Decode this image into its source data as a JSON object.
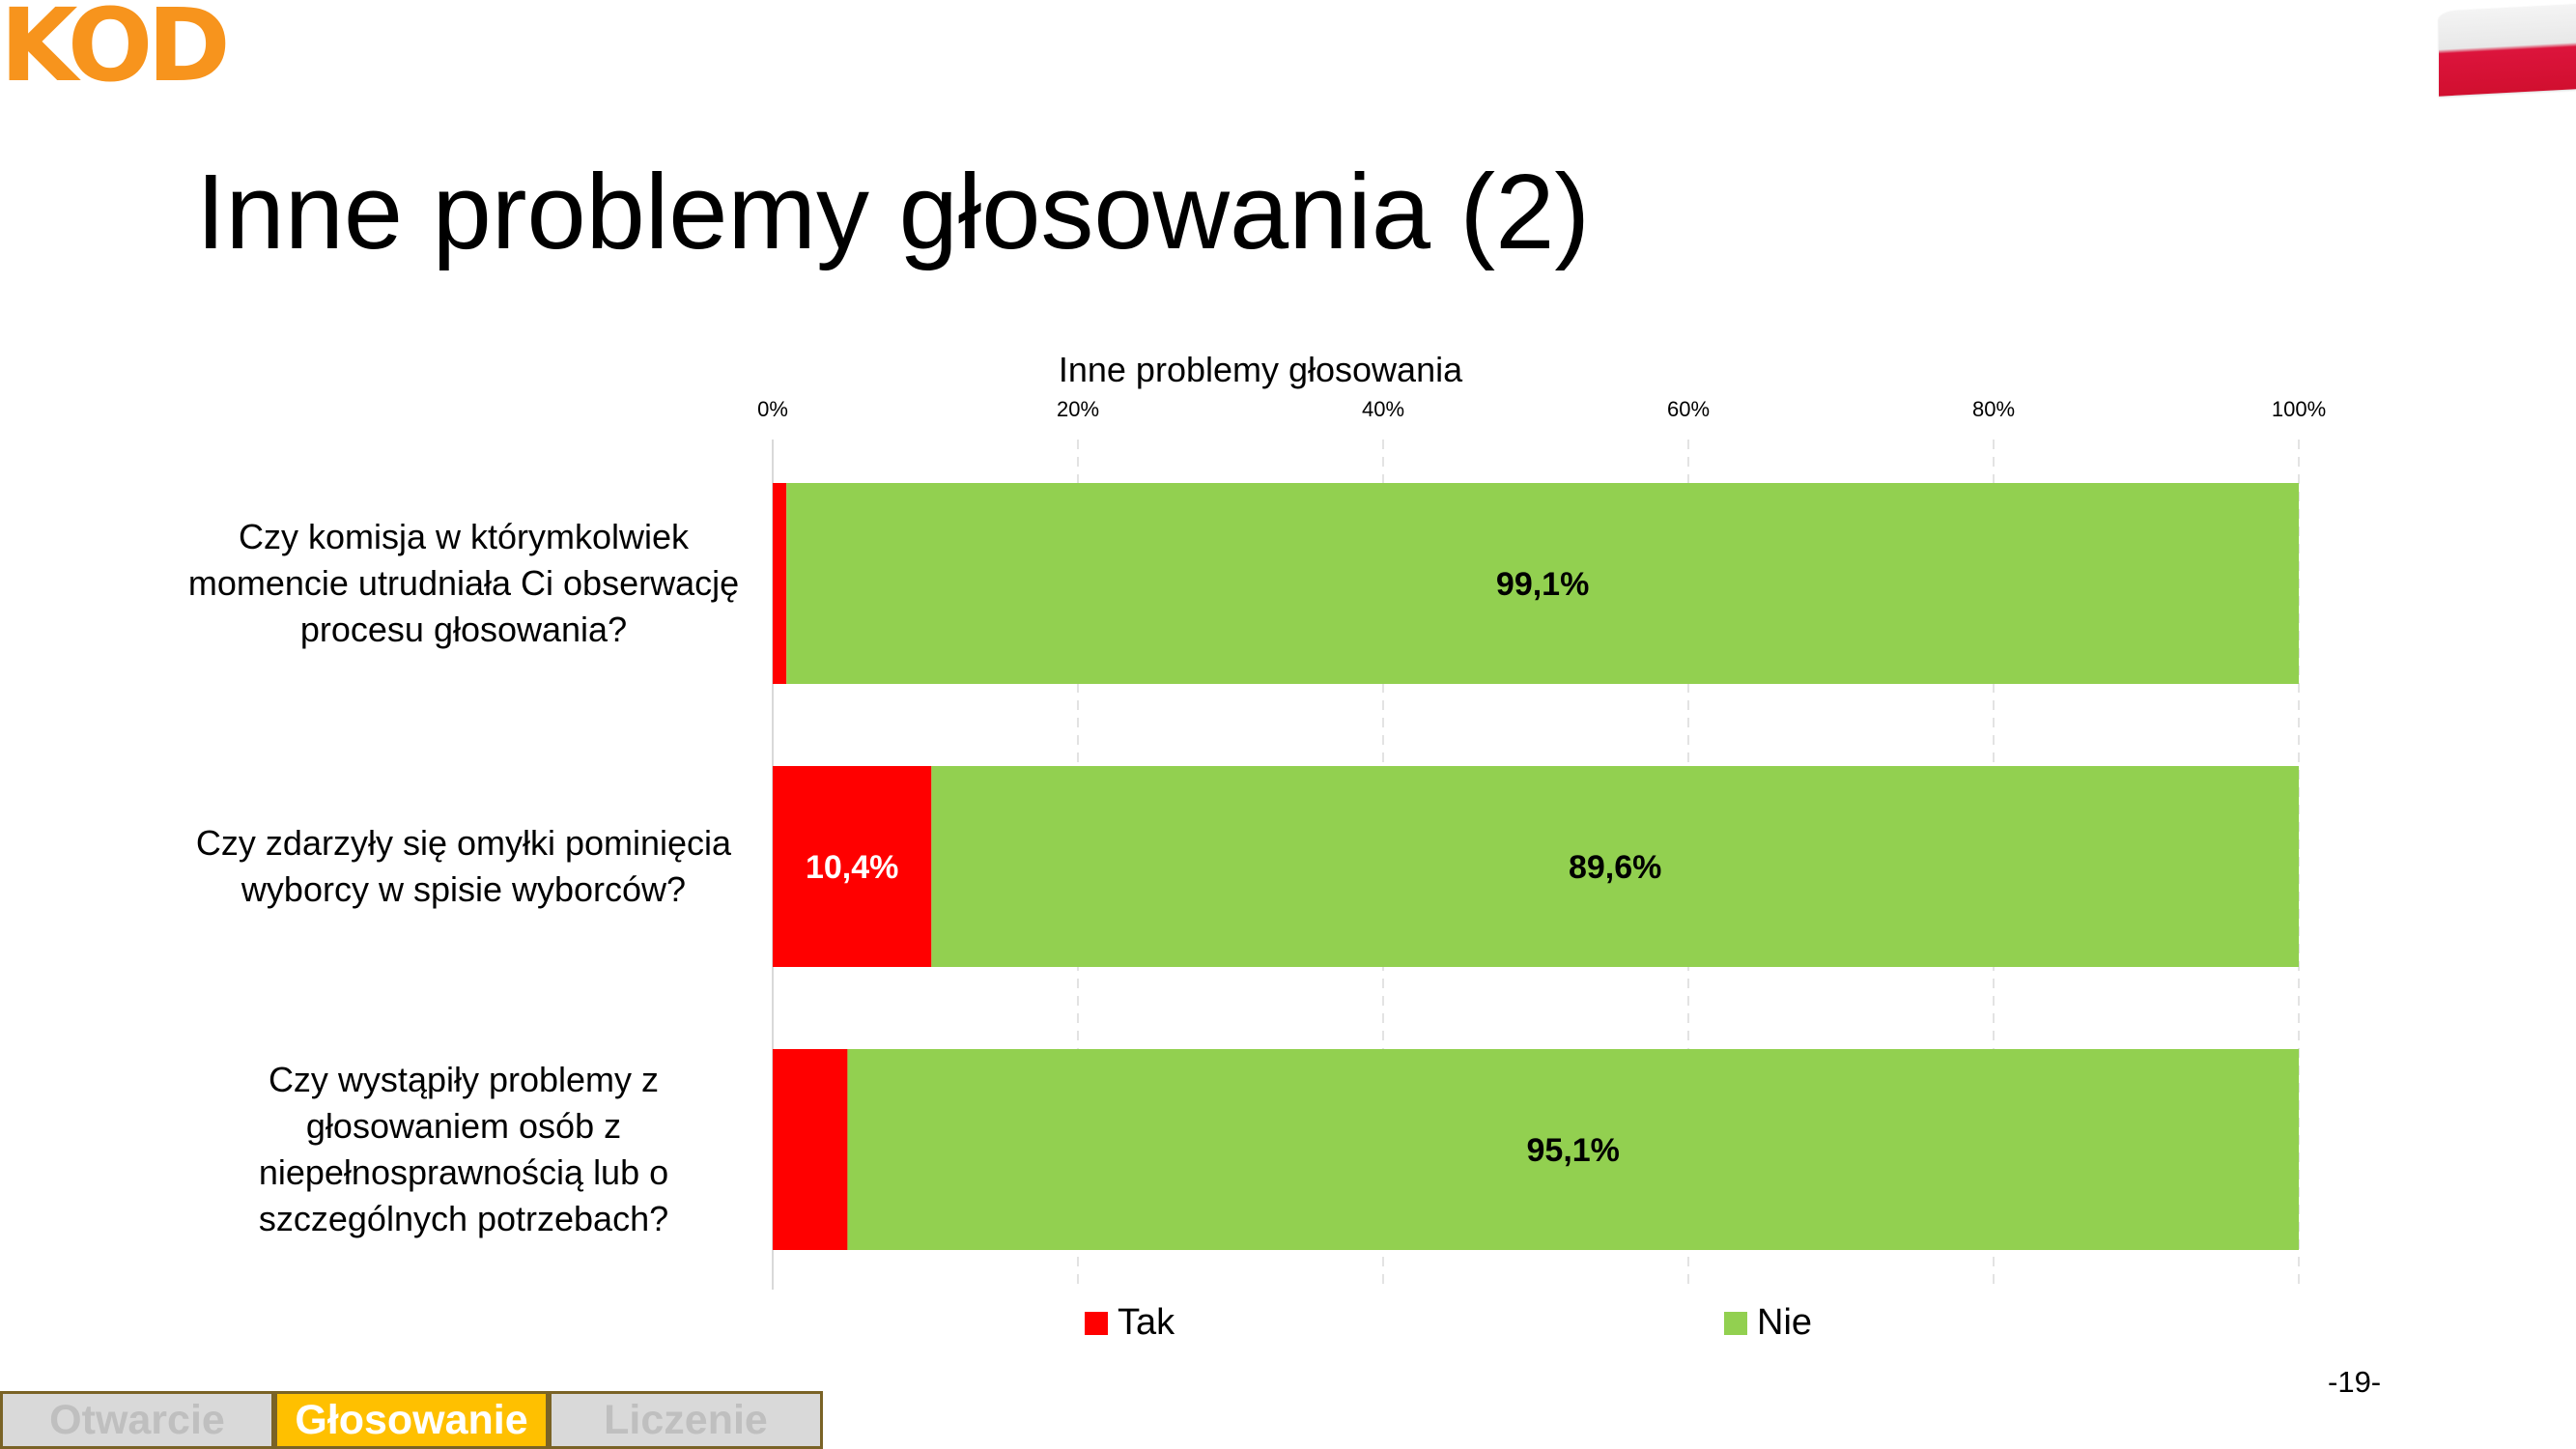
{
  "logo": {
    "text": "KOD",
    "color": "#f7941d"
  },
  "page_title": "Inne problemy głosowania (2)",
  "page_number": "-19-",
  "tabs": [
    {
      "label": "Otwarcie",
      "active": false
    },
    {
      "label": "Głosowanie",
      "active": true
    },
    {
      "label": "Liczenie",
      "active": false
    }
  ],
  "chart_data": {
    "type": "bar",
    "orientation": "horizontal",
    "stacked": "100%",
    "title": "Inne problemy głosowania",
    "categories": [
      [
        "Czy komisja w którymkolwiek",
        "momencie utrudniała Ci obserwację",
        "procesu głosowania?"
      ],
      [
        "Czy zdarzyły się omyłki pominięcia",
        "wyborcy w spisie wyborców?"
      ],
      [
        "Czy wystąpiły problemy z",
        "głosowaniem osób z",
        "niepełnosprawnością lub o",
        "szczególnych potrzebach?"
      ]
    ],
    "series": [
      {
        "name": "Tak",
        "color": "#ff0000",
        "values": [
          0.9,
          10.4,
          4.9
        ],
        "labels": [
          "",
          "10,4%",
          ""
        ]
      },
      {
        "name": "Nie",
        "color": "#92d050",
        "values": [
          99.1,
          89.6,
          95.1
        ],
        "labels": [
          "99,1%",
          "89,6%",
          "95,1%"
        ]
      }
    ],
    "xlim": [
      0,
      100
    ],
    "x_ticks": [
      0,
      20,
      40,
      60,
      80,
      100
    ],
    "x_tick_labels": [
      "0%",
      "20%",
      "40%",
      "60%",
      "80%",
      "100%"
    ],
    "x_axis_position": "top",
    "grid": "vertical dashed",
    "legend_position": "bottom"
  }
}
